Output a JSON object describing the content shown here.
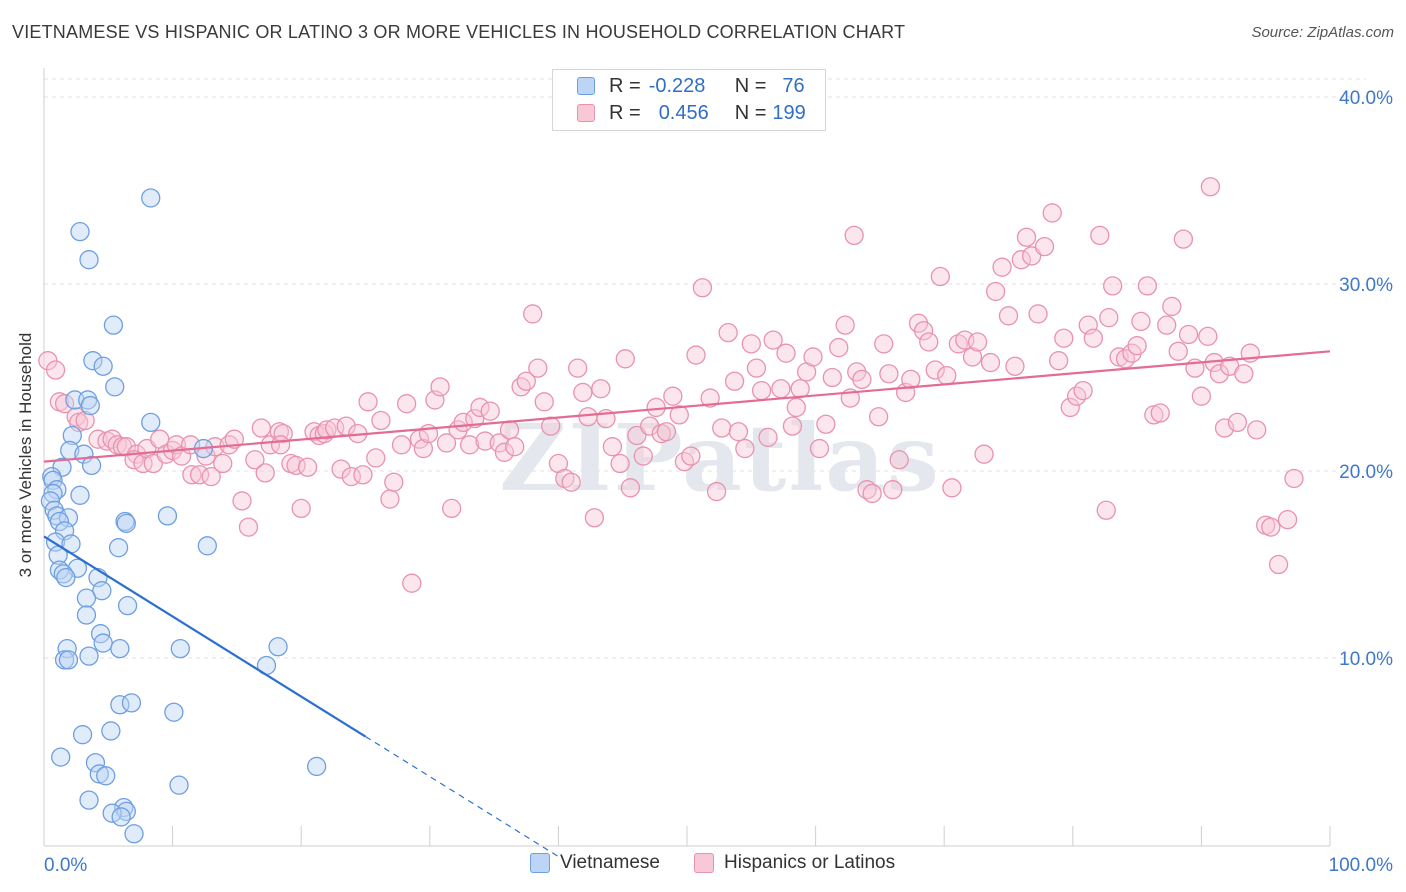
{
  "title": "VIETNAMESE VS HISPANIC OR LATINO 3 OR MORE VEHICLES IN HOUSEHOLD CORRELATION CHART",
  "source": "Source: ZipAtlas.com",
  "watermark": "ZIPatlas",
  "legend": {
    "r_label": "R =",
    "n_label": "N =",
    "rows": [
      {
        "name": "Vietnamese",
        "r": "-0.228",
        "n": "76",
        "fill": "#bcd4f5",
        "stroke": "#6f9fe0"
      },
      {
        "name": "Hispanics or Latinos",
        "r": "0.456",
        "n": "199",
        "fill": "#f8c8d6",
        "stroke": "#e893ae"
      }
    ]
  },
  "chart_data": {
    "type": "scatter",
    "title": "VIETNAMESE VS HISPANIC OR LATINO 3 OR MORE VEHICLES IN HOUSEHOLD CORRELATION CHART",
    "xlabel": "",
    "ylabel": "3 or more Vehicles in Household",
    "xlim": [
      0,
      100
    ],
    "ylim": [
      0,
      40
    ],
    "x_tick_labels": [
      "0.0%",
      "100.0%"
    ],
    "y_ticks": [
      10,
      20,
      30,
      40
    ],
    "y_tick_labels": [
      "10.0%",
      "20.0%",
      "30.0%",
      "40.0%"
    ],
    "grid": true,
    "series": [
      {
        "name": "Vietnamese",
        "color": "#6f9fe0",
        "fill": "#bcd4f5",
        "trend": {
          "x0": 0,
          "y0": 16.5,
          "x1": 25,
          "y1": 5.8,
          "dash_to_x": 40
        },
        "points": [
          [
            8.3,
            34.6
          ],
          [
            2.8,
            32.8
          ],
          [
            3.5,
            31.3
          ],
          [
            5.4,
            27.8
          ],
          [
            3.8,
            25.9
          ],
          [
            4.6,
            25.6
          ],
          [
            5.5,
            24.5
          ],
          [
            2.4,
            23.8
          ],
          [
            3.4,
            23.8
          ],
          [
            3.6,
            23.5
          ],
          [
            8.3,
            22.6
          ],
          [
            2.2,
            21.9
          ],
          [
            2.0,
            21.1
          ],
          [
            12.4,
            21.2
          ],
          [
            3.1,
            20.9
          ],
          [
            1.4,
            20.2
          ],
          [
            3.7,
            20.3
          ],
          [
            0.6,
            19.7
          ],
          [
            0.7,
            19.5
          ],
          [
            1.0,
            19.0
          ],
          [
            0.7,
            18.8
          ],
          [
            0.5,
            18.4
          ],
          [
            2.8,
            18.7
          ],
          [
            0.8,
            17.9
          ],
          [
            1.0,
            17.6
          ],
          [
            1.9,
            17.5
          ],
          [
            6.3,
            17.3
          ],
          [
            6.4,
            17.2
          ],
          [
            9.6,
            17.6
          ],
          [
            1.2,
            17.3
          ],
          [
            1.6,
            16.8
          ],
          [
            0.9,
            16.2
          ],
          [
            2.1,
            16.1
          ],
          [
            12.7,
            16.0
          ],
          [
            5.8,
            15.9
          ],
          [
            1.1,
            15.5
          ],
          [
            1.2,
            14.7
          ],
          [
            2.6,
            14.8
          ],
          [
            1.5,
            14.5
          ],
          [
            1.7,
            14.3
          ],
          [
            4.2,
            14.3
          ],
          [
            4.5,
            13.6
          ],
          [
            3.3,
            13.2
          ],
          [
            6.5,
            12.8
          ],
          [
            3.3,
            12.3
          ],
          [
            4.4,
            11.3
          ],
          [
            4.6,
            10.8
          ],
          [
            1.8,
            10.5
          ],
          [
            5.9,
            10.5
          ],
          [
            10.6,
            10.5
          ],
          [
            18.2,
            10.6
          ],
          [
            3.5,
            10.1
          ],
          [
            1.6,
            9.9
          ],
          [
            1.9,
            9.9
          ],
          [
            17.3,
            9.6
          ],
          [
            5.9,
            7.5
          ],
          [
            6.8,
            7.6
          ],
          [
            10.1,
            7.1
          ],
          [
            5.2,
            6.1
          ],
          [
            3.0,
            5.9
          ],
          [
            1.3,
            4.7
          ],
          [
            4.0,
            4.4
          ],
          [
            21.2,
            4.2
          ],
          [
            4.3,
            3.8
          ],
          [
            4.8,
            3.7
          ],
          [
            10.5,
            3.2
          ],
          [
            3.5,
            2.4
          ],
          [
            6.2,
            2.0
          ],
          [
            6.4,
            1.8
          ],
          [
            5.3,
            1.7
          ],
          [
            6.0,
            1.5
          ],
          [
            7.0,
            0.6
          ]
        ]
      },
      {
        "name": "Hispanics or Latinos",
        "color": "#e893ae",
        "fill": "#f8c8d6",
        "trend": {
          "x0": 0,
          "y0": 20.5,
          "x1": 100,
          "y1": 26.4
        },
        "points": [
          [
            0.3,
            25.9
          ],
          [
            0.9,
            25.4
          ],
          [
            1.2,
            23.7
          ],
          [
            1.6,
            23.6
          ],
          [
            2.5,
            22.9
          ],
          [
            2.7,
            22.6
          ],
          [
            3.2,
            22.7
          ],
          [
            4.2,
            21.7
          ],
          [
            4.9,
            21.6
          ],
          [
            5.3,
            21.7
          ],
          [
            5.7,
            21.4
          ],
          [
            6.1,
            21.3
          ],
          [
            6.4,
            21.3
          ],
          [
            7.2,
            20.9
          ],
          [
            7.0,
            20.6
          ],
          [
            7.7,
            20.4
          ],
          [
            8.0,
            21.2
          ],
          [
            8.5,
            20.4
          ],
          [
            9.0,
            21.7
          ],
          [
            9.5,
            20.9
          ],
          [
            10.0,
            21.1
          ],
          [
            10.3,
            21.4
          ],
          [
            10.7,
            20.8
          ],
          [
            11.4,
            21.4
          ],
          [
            11.5,
            19.8
          ],
          [
            12.1,
            19.8
          ],
          [
            12.6,
            20.8
          ],
          [
            13.0,
            19.7
          ],
          [
            13.3,
            21.3
          ],
          [
            13.9,
            20.4
          ],
          [
            14.4,
            21.4
          ],
          [
            14.8,
            21.7
          ],
          [
            15.4,
            18.4
          ],
          [
            15.9,
            17.0
          ],
          [
            16.4,
            20.6
          ],
          [
            16.9,
            22.3
          ],
          [
            17.2,
            19.9
          ],
          [
            17.6,
            21.4
          ],
          [
            18.3,
            22.1
          ],
          [
            18.6,
            22.0
          ],
          [
            18.4,
            21.4
          ],
          [
            19.2,
            20.4
          ],
          [
            19.6,
            20.3
          ],
          [
            20.0,
            18.0
          ],
          [
            20.5,
            20.2
          ],
          [
            21.0,
            22.1
          ],
          [
            21.4,
            21.9
          ],
          [
            21.8,
            22.0
          ],
          [
            22.0,
            22.2
          ],
          [
            22.6,
            22.3
          ],
          [
            23.1,
            20.1
          ],
          [
            23.5,
            22.4
          ],
          [
            23.9,
            19.7
          ],
          [
            24.4,
            22.0
          ],
          [
            24.8,
            19.8
          ],
          [
            25.2,
            23.7
          ],
          [
            25.8,
            20.7
          ],
          [
            26.2,
            22.7
          ],
          [
            26.9,
            18.5
          ],
          [
            27.2,
            19.4
          ],
          [
            27.8,
            21.4
          ],
          [
            28.2,
            23.6
          ],
          [
            28.6,
            14.0
          ],
          [
            29.2,
            21.7
          ],
          [
            29.5,
            21.2
          ],
          [
            29.9,
            22.0
          ],
          [
            30.4,
            23.8
          ],
          [
            30.8,
            24.5
          ],
          [
            31.3,
            21.5
          ],
          [
            31.7,
            18.0
          ],
          [
            32.2,
            22.2
          ],
          [
            32.6,
            22.6
          ],
          [
            33.1,
            21.4
          ],
          [
            33.5,
            22.8
          ],
          [
            33.9,
            23.4
          ],
          [
            34.3,
            21.6
          ],
          [
            34.7,
            23.2
          ],
          [
            35.4,
            21.5
          ],
          [
            35.8,
            21.0
          ],
          [
            36.2,
            22.2
          ],
          [
            36.6,
            21.3
          ],
          [
            37.1,
            24.5
          ],
          [
            37.5,
            24.8
          ],
          [
            38.0,
            28.4
          ],
          [
            38.4,
            25.5
          ],
          [
            38.9,
            23.7
          ],
          [
            39.4,
            22.4
          ],
          [
            40.0,
            20.4
          ],
          [
            40.5,
            19.6
          ],
          [
            41.0,
            19.4
          ],
          [
            41.5,
            25.5
          ],
          [
            41.9,
            24.2
          ],
          [
            42.3,
            22.9
          ],
          [
            42.8,
            17.5
          ],
          [
            43.3,
            24.4
          ],
          [
            43.7,
            22.8
          ],
          [
            44.2,
            21.3
          ],
          [
            44.8,
            20.4
          ],
          [
            45.2,
            26.0
          ],
          [
            45.6,
            19.1
          ],
          [
            46.1,
            21.9
          ],
          [
            46.6,
            20.8
          ],
          [
            47.1,
            22.4
          ],
          [
            47.6,
            23.4
          ],
          [
            48.0,
            22.0
          ],
          [
            48.4,
            22.1
          ],
          [
            48.9,
            24.0
          ],
          [
            49.4,
            23.0
          ],
          [
            49.8,
            20.5
          ],
          [
            50.3,
            20.8
          ],
          [
            50.7,
            26.2
          ],
          [
            51.2,
            29.8
          ],
          [
            51.8,
            23.9
          ],
          [
            52.3,
            18.9
          ],
          [
            52.7,
            22.3
          ],
          [
            53.2,
            27.4
          ],
          [
            53.7,
            24.8
          ],
          [
            54.0,
            22.1
          ],
          [
            54.5,
            21.2
          ],
          [
            55.0,
            26.8
          ],
          [
            55.4,
            25.5
          ],
          [
            55.8,
            24.3
          ],
          [
            56.3,
            21.8
          ],
          [
            56.7,
            27.0
          ],
          [
            57.3,
            24.4
          ],
          [
            57.7,
            26.3
          ],
          [
            58.2,
            22.4
          ],
          [
            58.5,
            23.4
          ],
          [
            58.8,
            24.4
          ],
          [
            59.3,
            25.3
          ],
          [
            59.8,
            26.1
          ],
          [
            60.3,
            21.2
          ],
          [
            60.8,
            22.5
          ],
          [
            61.3,
            25.0
          ],
          [
            61.8,
            26.6
          ],
          [
            62.3,
            27.8
          ],
          [
            62.7,
            23.9
          ],
          [
            63.2,
            25.3
          ],
          [
            63.6,
            24.9
          ],
          [
            64.0,
            19.0
          ],
          [
            64.4,
            18.8
          ],
          [
            64.9,
            22.9
          ],
          [
            65.3,
            26.8
          ],
          [
            65.7,
            25.2
          ],
          [
            66.0,
            19.0
          ],
          [
            66.5,
            20.6
          ],
          [
            67.0,
            24.2
          ],
          [
            67.4,
            24.9
          ],
          [
            68.0,
            27.9
          ],
          [
            68.4,
            27.5
          ],
          [
            68.8,
            26.9
          ],
          [
            69.3,
            25.4
          ],
          [
            69.7,
            30.4
          ],
          [
            70.2,
            25.1
          ],
          [
            70.6,
            19.1
          ],
          [
            71.1,
            26.8
          ],
          [
            71.6,
            27.0
          ],
          [
            72.2,
            26.1
          ],
          [
            72.6,
            26.9
          ],
          [
            73.1,
            20.9
          ],
          [
            73.6,
            25.8
          ],
          [
            74.0,
            29.6
          ],
          [
            74.5,
            30.9
          ],
          [
            75.0,
            28.3
          ],
          [
            75.5,
            25.6
          ],
          [
            76.0,
            31.3
          ],
          [
            76.4,
            32.5
          ],
          [
            76.8,
            31.5
          ],
          [
            77.3,
            28.4
          ],
          [
            77.8,
            32.0
          ],
          [
            78.4,
            33.8
          ],
          [
            78.9,
            25.9
          ],
          [
            79.3,
            27.1
          ],
          [
            79.8,
            23.4
          ],
          [
            80.3,
            24.0
          ],
          [
            80.8,
            24.3
          ],
          [
            81.2,
            27.8
          ],
          [
            81.6,
            27.1
          ],
          [
            82.1,
            32.6
          ],
          [
            82.6,
            17.9
          ],
          [
            83.1,
            29.9
          ],
          [
            83.6,
            26.1
          ],
          [
            84.1,
            26.0
          ],
          [
            84.6,
            26.3
          ],
          [
            85.0,
            26.7
          ],
          [
            85.3,
            28.0
          ],
          [
            85.8,
            29.9
          ],
          [
            86.3,
            23.0
          ],
          [
            86.8,
            23.1
          ],
          [
            87.3,
            27.8
          ],
          [
            87.7,
            28.8
          ],
          [
            88.2,
            26.4
          ],
          [
            88.6,
            32.4
          ],
          [
            89.0,
            27.3
          ],
          [
            89.5,
            25.5
          ],
          [
            90.0,
            24.0
          ],
          [
            90.5,
            27.2
          ],
          [
            91.0,
            25.8
          ],
          [
            91.4,
            25.2
          ],
          [
            91.8,
            22.3
          ],
          [
            92.2,
            25.6
          ],
          [
            92.8,
            22.6
          ],
          [
            93.3,
            25.2
          ],
          [
            93.8,
            26.3
          ],
          [
            94.3,
            22.2
          ],
          [
            95.0,
            17.1
          ],
          [
            95.4,
            17.0
          ],
          [
            96.0,
            15.0
          ],
          [
            96.7,
            17.4
          ],
          [
            97.2,
            19.6
          ],
          [
            90.7,
            35.2
          ],
          [
            82.8,
            28.2
          ],
          [
            63.0,
            32.6
          ]
        ]
      }
    ]
  }
}
